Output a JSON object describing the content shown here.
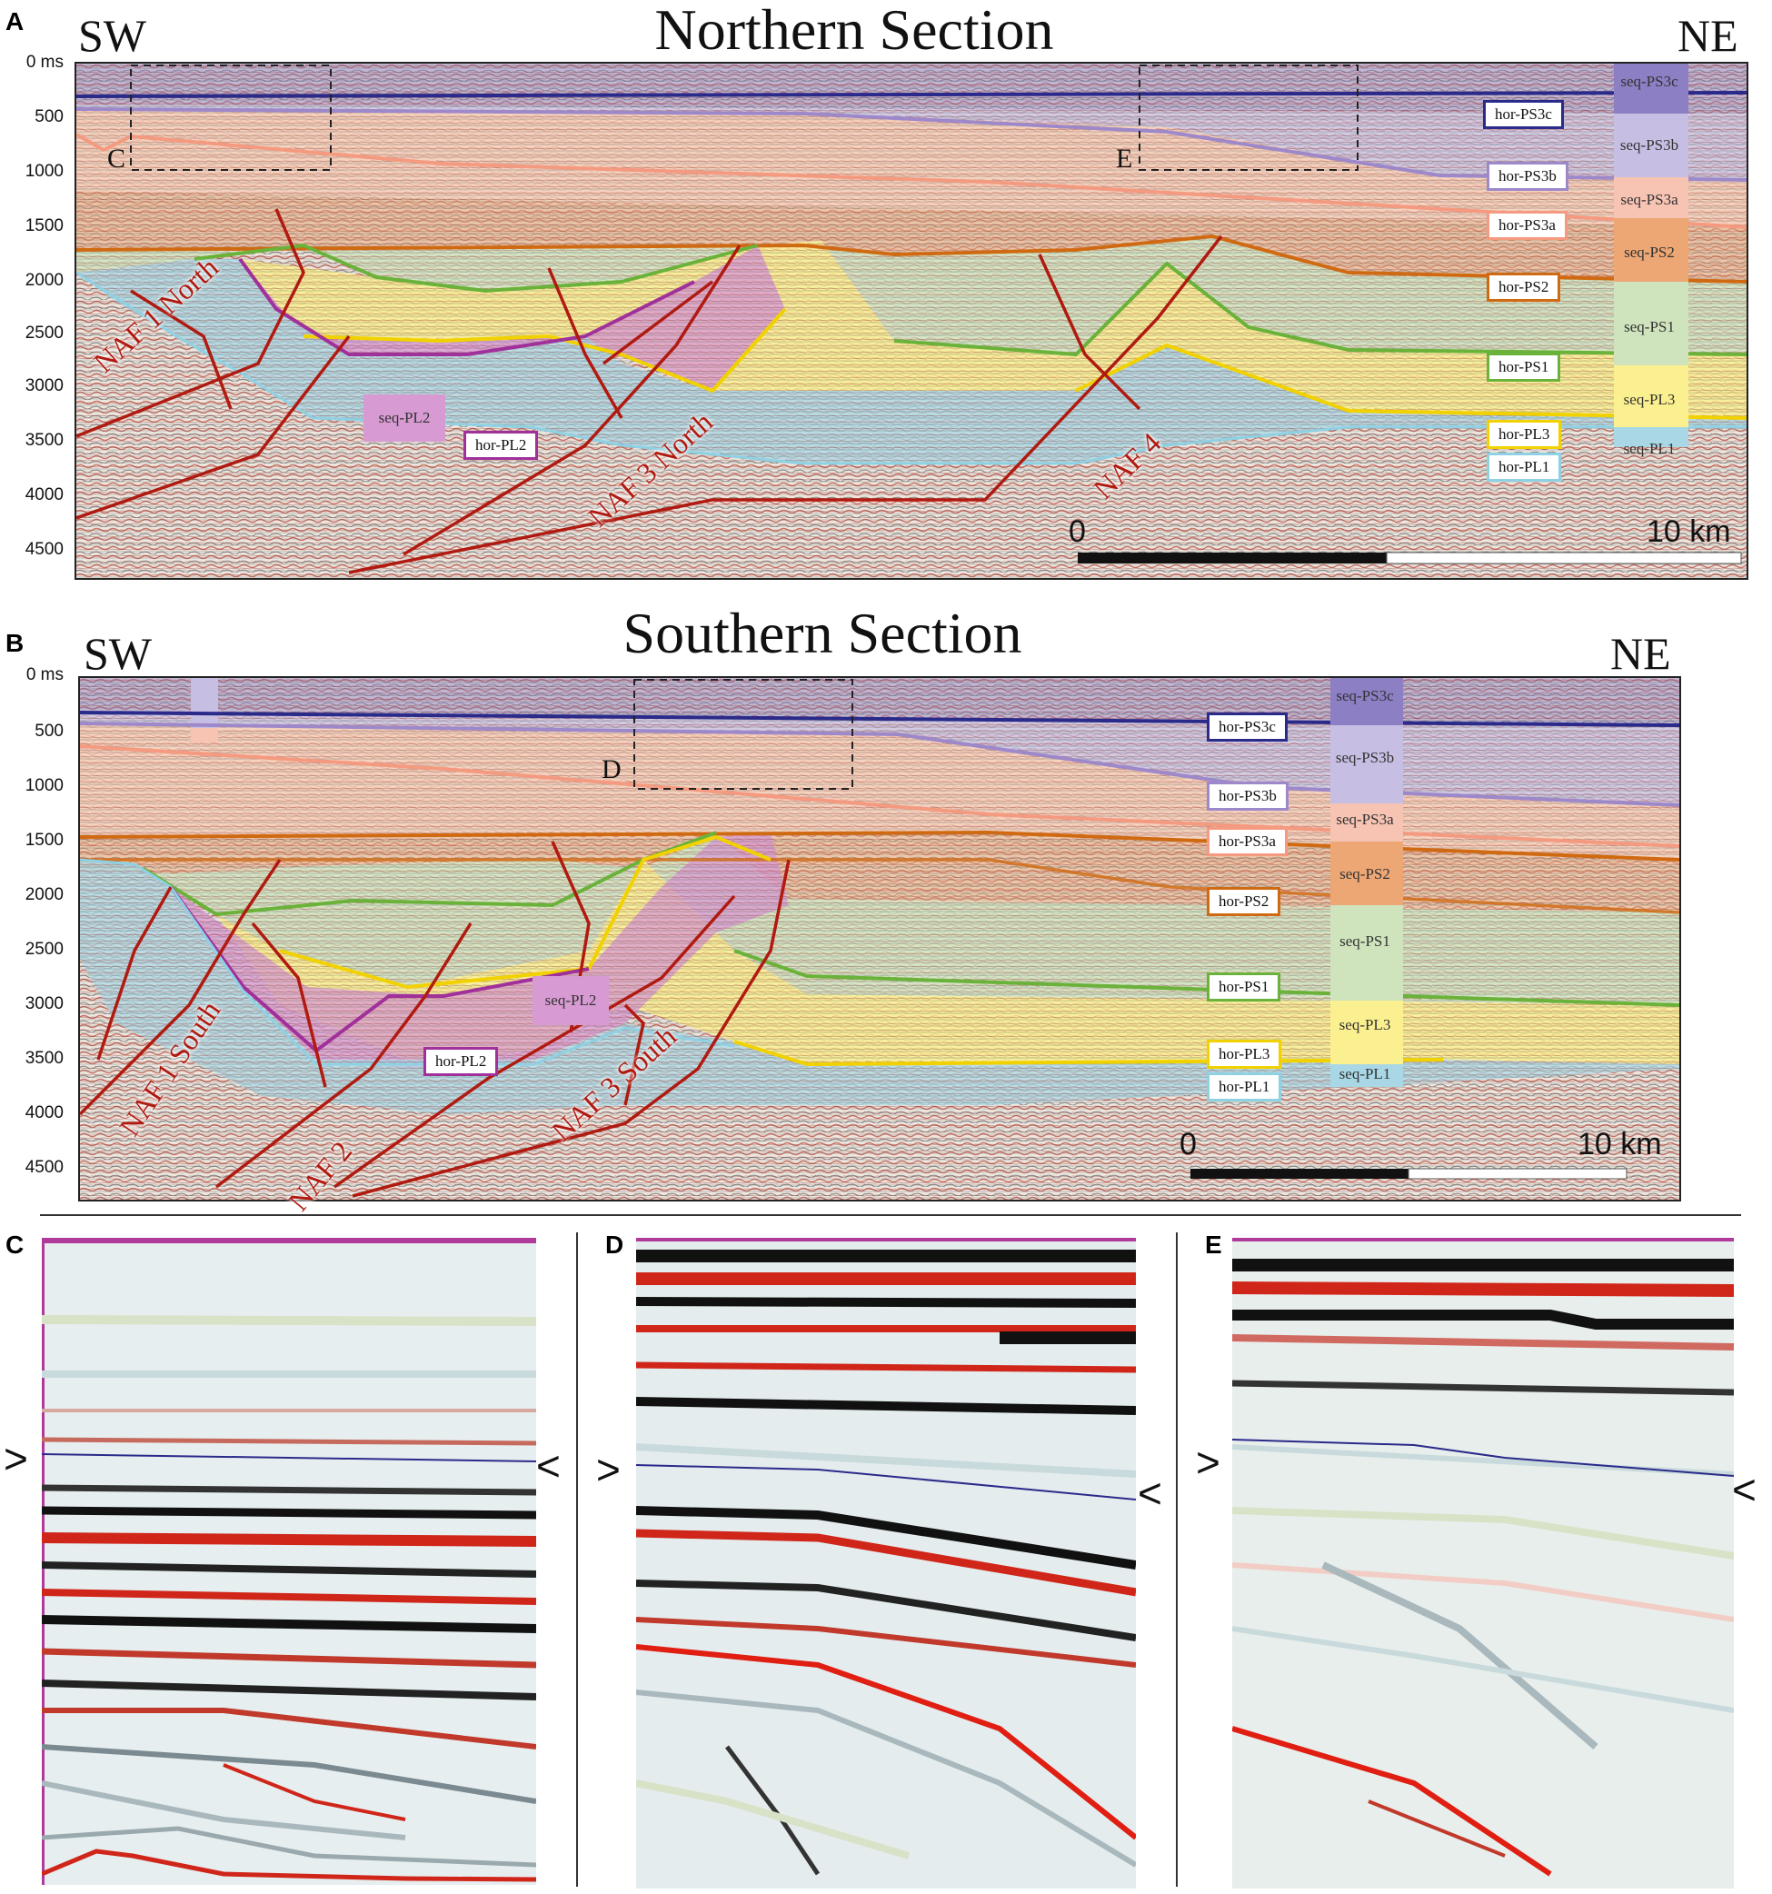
{
  "panel_a": {
    "label": "A",
    "title": "Northern Section",
    "left_dir": "SW",
    "right_dir": "NE",
    "time_axis": [
      "0 ms",
      "500",
      "1000",
      "1500",
      "2000",
      "2500",
      "3000",
      "3500",
      "4000",
      "4500"
    ],
    "horizons": [
      "hor-PS3c",
      "hor-PS3b",
      "hor-PS3a",
      "hor-PS2",
      "hor-PS1",
      "hor-PL3",
      "hor-PL1"
    ],
    "inline_horizon": "hor-PL2",
    "sequences": [
      "seq-PS3c",
      "seq-PS3b",
      "seq-PS3a",
      "seq-PS2",
      "seq-PS1",
      "seq-PL3",
      "seq-PL1"
    ],
    "inline_sequence": "seq-PL2",
    "faults": [
      "NAF 1 North",
      "NAF 3 North",
      "NAF 4"
    ],
    "boxes": [
      "C",
      "E"
    ],
    "scale_start": "0",
    "scale_end": "10 km"
  },
  "panel_b": {
    "label": "B",
    "title": "Southern Section",
    "left_dir": "SW",
    "right_dir": "NE",
    "time_axis": [
      "0 ms",
      "500",
      "1000",
      "1500",
      "2000",
      "2500",
      "3000",
      "3500",
      "4000",
      "4500"
    ],
    "horizons": [
      "hor-PS3c",
      "hor-PS3b",
      "hor-PS3a",
      "hor-PS2",
      "hor-PS1",
      "hor-PL3",
      "hor-PL1"
    ],
    "inline_horizon": "hor-PL2",
    "sequences": [
      "seq-PS3c",
      "seq-PS3b",
      "seq-PS3a",
      "seq-PS2",
      "seq-PS1",
      "seq-PL3",
      "seq-PL1"
    ],
    "inline_sequence": "seq-PL2",
    "faults": [
      "NAF 1 South",
      "NAF 2",
      "NAF 3 South"
    ],
    "boxes": [
      "D"
    ],
    "scale_start": "0",
    "scale_end": "10 km"
  },
  "panel_c": {
    "label": "C"
  },
  "panel_d": {
    "label": "D"
  },
  "panel_e": {
    "label": "E"
  },
  "colors": {
    "seq_PS3c": "#8d7fc4",
    "seq_PS3b": "#c7bfe3",
    "seq_PS3a": "#f7c3b3",
    "seq_PS2": "#eda774",
    "seq_PS1": "#cfe3bd",
    "seq_PL3": "#fbf08f",
    "seq_PL1": "#a9d7e6",
    "seq_PL2": "#d79ad2",
    "hor_PS3c": "#2a2a8a",
    "hor_PS3b": "#9d88c9",
    "hor_PS3a": "#f49a80",
    "hor_PS2": "#d06a12",
    "hor_PS1": "#6ab23a",
    "hor_PL3": "#f1d200",
    "hor_PL1": "#8fd1e3",
    "hor_PL2": "#a0309a",
    "fault": "#b01a10"
  }
}
